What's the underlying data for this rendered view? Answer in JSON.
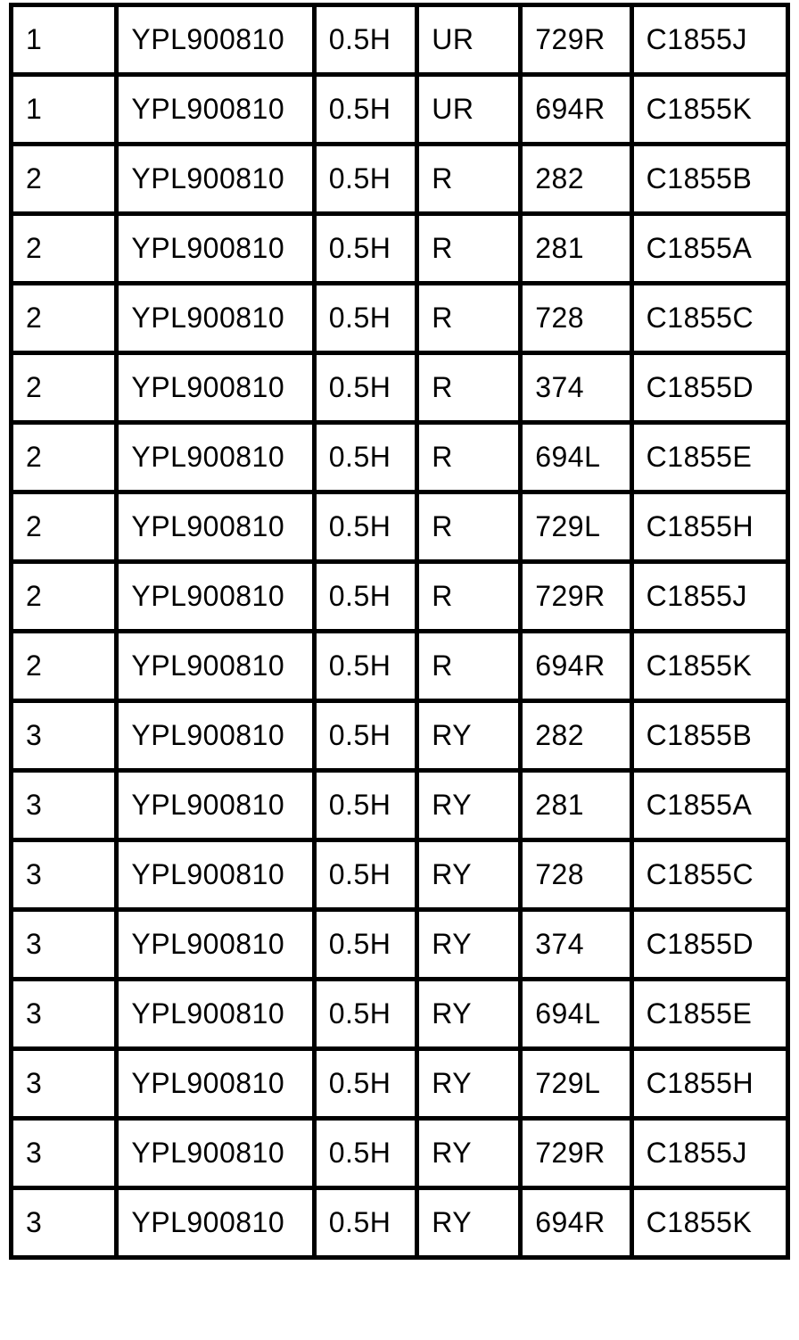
{
  "document": {
    "kind": "scanned-table-figure",
    "colors": {
      "background": "#ffffff",
      "border": "#000000",
      "text": "#000000"
    }
  },
  "chart_data": {
    "type": "table",
    "title": "",
    "columns": [
      "",
      "",
      "",
      "",
      "",
      ""
    ],
    "rows": [
      [
        "1",
        "YPL900810",
        "0.5H",
        "UR",
        "729R",
        "C1855J"
      ],
      [
        "1",
        "YPL900810",
        "0.5H",
        "UR",
        "694R",
        "C1855K"
      ],
      [
        "2",
        "YPL900810",
        "0.5H",
        "R",
        "282",
        "C1855B"
      ],
      [
        "2",
        "YPL900810",
        "0.5H",
        "R",
        "281",
        "C1855A"
      ],
      [
        "2",
        "YPL900810",
        "0.5H",
        "R",
        "728",
        "C1855C"
      ],
      [
        "2",
        "YPL900810",
        "0.5H",
        "R",
        "374",
        "C1855D"
      ],
      [
        "2",
        "YPL900810",
        "0.5H",
        "R",
        "694L",
        "C1855E"
      ],
      [
        "2",
        "YPL900810",
        "0.5H",
        "R",
        "729L",
        "C1855H"
      ],
      [
        "2",
        "YPL900810",
        "0.5H",
        "R",
        "729R",
        "C1855J"
      ],
      [
        "2",
        "YPL900810",
        "0.5H",
        "R",
        "694R",
        "C1855K"
      ],
      [
        "3",
        "YPL900810",
        "0.5H",
        "RY",
        "282",
        "C1855B"
      ],
      [
        "3",
        "YPL900810",
        "0.5H",
        "RY",
        "281",
        "C1855A"
      ],
      [
        "3",
        "YPL900810",
        "0.5H",
        "RY",
        "728",
        "C1855C"
      ],
      [
        "3",
        "YPL900810",
        "0.5H",
        "RY",
        "374",
        "C1855D"
      ],
      [
        "3",
        "YPL900810",
        "0.5H",
        "RY",
        "694L",
        "C1855E"
      ],
      [
        "3",
        "YPL900810",
        "0.5H",
        "RY",
        "729L",
        "C1855H"
      ],
      [
        "3",
        "YPL900810",
        "0.5H",
        "RY",
        "729R",
        "C1855J"
      ],
      [
        "3",
        "YPL900810",
        "0.5H",
        "RY",
        "694R",
        "C1855K"
      ]
    ]
  }
}
